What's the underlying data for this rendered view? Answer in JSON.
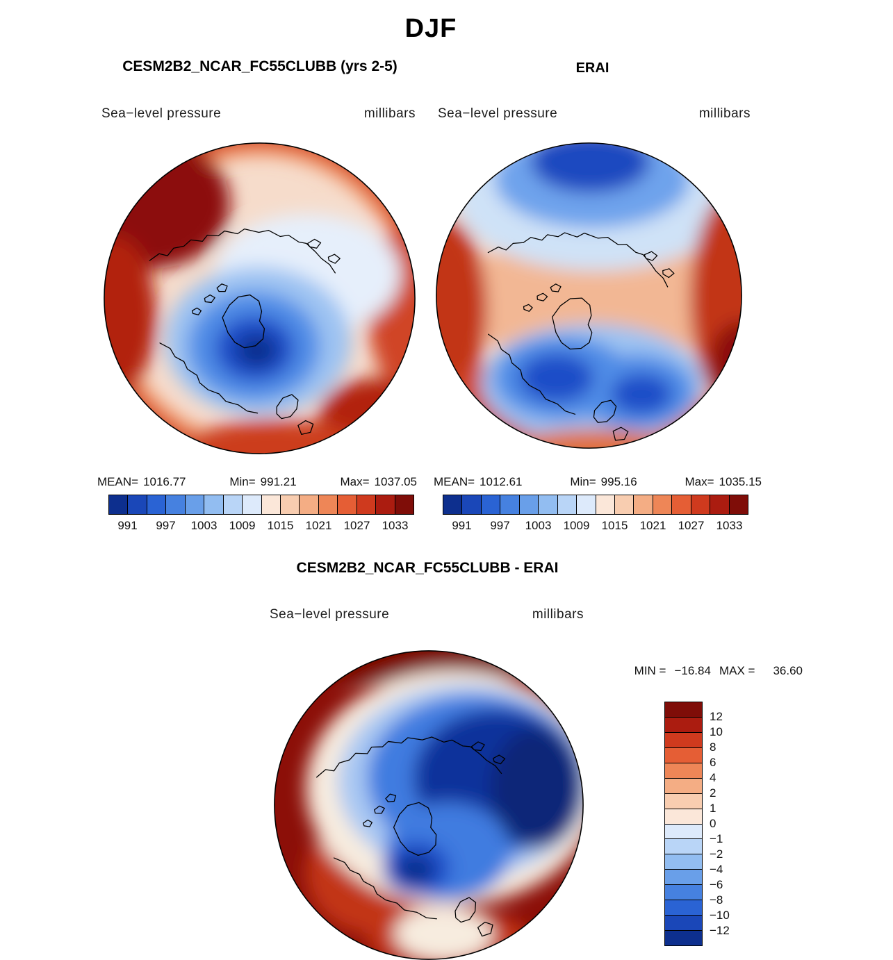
{
  "figure_title": "DJF",
  "panels": {
    "model": {
      "title": "CESM2B2_NCAR_FC55CLUBB (yrs 2-5)",
      "field_label": "Sea−level pressure",
      "units_label": "millibars",
      "stats": {
        "mean_label": "MEAN=",
        "mean": "1016.77",
        "min_label": "Min=",
        "min": "991.21",
        "max_label": "Max=",
        "max": "1037.05"
      },
      "colorbar_ticks": [
        "991",
        "997",
        "1003",
        "1009",
        "1015",
        "1021",
        "1027",
        "1033"
      ]
    },
    "reference": {
      "title": "ERAI",
      "field_label": "Sea−level pressure",
      "units_label": "millibars",
      "stats": {
        "mean_label": "MEAN=",
        "mean": "1012.61",
        "min_label": "Min=",
        "min": "995.16",
        "max_label": "Max=",
        "max": "1035.15"
      },
      "colorbar_ticks": [
        "991",
        "997",
        "1003",
        "1009",
        "1015",
        "1021",
        "1027",
        "1033"
      ]
    },
    "difference": {
      "title": "CESM2B2_NCAR_FC55CLUBB - ERAI",
      "field_label": "Sea−level pressure",
      "units_label": "millibars",
      "minmax": {
        "min_label": "MIN =",
        "min": "−16.84",
        "max_label": "MAX =",
        "max": "36.60"
      },
      "colorbar_ticks": [
        "12",
        "10",
        "8",
        "6",
        "4",
        "2",
        "1",
        "0",
        "−1",
        "−2",
        "−4",
        "−6",
        "−8",
        "−10",
        "−12"
      ]
    }
  },
  "palette": {
    "pressure": [
      "#0d2f8e",
      "#1a47b8",
      "#2a63d4",
      "#4681e0",
      "#699fe9",
      "#92bdf1",
      "#b9d5f7",
      "#ddeafb",
      "#fbe7d9",
      "#f8cdb0",
      "#f4ad84",
      "#ee8657",
      "#e55e35",
      "#cf3a1e",
      "#ab1c10",
      "#7f0d08"
    ],
    "difference_top_down": [
      "#7f0d08",
      "#ab1c10",
      "#cf3a1e",
      "#e55e35",
      "#ee8657",
      "#f4ad84",
      "#f8cdb0",
      "#fbe7d9",
      "#ddeafb",
      "#b9d5f7",
      "#92bdf1",
      "#699fe9",
      "#4681e0",
      "#2a63d4",
      "#1a47b8",
      "#0d2f8e"
    ]
  },
  "chart_data": [
    {
      "type": "heatmap",
      "subtype": "polar-stereographic-filled-contour-map",
      "season": "DJF",
      "title": "CESM2B2_NCAR_FC55CLUBB (yrs 2-5)",
      "variable": "Sea-level pressure",
      "units": "millibars",
      "stats": {
        "mean": 1016.77,
        "min": 991.21,
        "max": 1037.05
      },
      "colorbar_tick_values": [
        991,
        997,
        1003,
        1009,
        1015,
        1021,
        1027,
        1033
      ],
      "colorbar_orientation": "horizontal",
      "n_color_segments": 16,
      "legend_position": "bottom"
    },
    {
      "type": "heatmap",
      "subtype": "polar-stereographic-filled-contour-map",
      "season": "DJF",
      "title": "ERAI",
      "variable": "Sea-level pressure",
      "units": "millibars",
      "stats": {
        "mean": 1012.61,
        "min": 995.16,
        "max": 1035.15
      },
      "colorbar_tick_values": [
        991,
        997,
        1003,
        1009,
        1015,
        1021,
        1027,
        1033
      ],
      "colorbar_orientation": "horizontal",
      "n_color_segments": 16,
      "legend_position": "bottom"
    },
    {
      "type": "heatmap",
      "subtype": "polar-stereographic-filled-contour-map",
      "season": "DJF",
      "title": "CESM2B2_NCAR_FC55CLUBB - ERAI",
      "variable": "Sea-level pressure difference",
      "units": "millibars",
      "stats": {
        "min": -16.84,
        "max": 36.6
      },
      "colorbar_tick_values": [
        12,
        10,
        8,
        6,
        4,
        2,
        1,
        0,
        -1,
        -2,
        -4,
        -6,
        -8,
        -10,
        -12
      ],
      "colorbar_orientation": "vertical",
      "n_color_segments": 16,
      "legend_position": "right"
    }
  ]
}
